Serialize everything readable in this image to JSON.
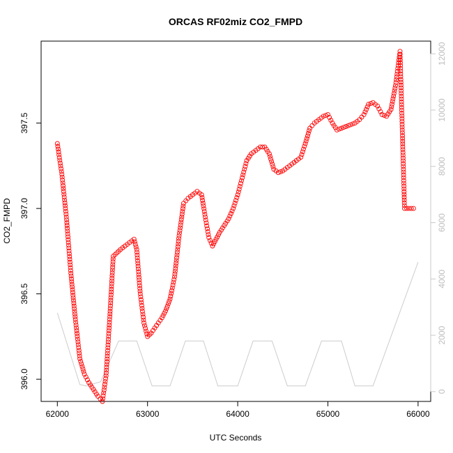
{
  "chart_data": {
    "type": "scatter",
    "title": "ORCAS RF02miz CO2_FMPD",
    "xlabel": "UTC Seconds",
    "ylabel": "CO2_FMPD",
    "xlim": [
      61820,
      66140
    ],
    "ylim": [
      395.87,
      397.98
    ],
    "y2lim": [
      -350,
      12450
    ],
    "x_ticks": [
      {
        "value": 62000,
        "label": "62000"
      },
      {
        "value": 63000,
        "label": "63000"
      },
      {
        "value": 64000,
        "label": "64000"
      },
      {
        "value": 65000,
        "label": "65000"
      },
      {
        "value": 66000,
        "label": "66000"
      }
    ],
    "y_ticks": [
      {
        "value": 396.0,
        "label": "396.0"
      },
      {
        "value": 396.5,
        "label": "396.5"
      },
      {
        "value": 397.0,
        "label": "397.0"
      },
      {
        "value": 397.5,
        "label": "397.5"
      }
    ],
    "y2_ticks": [
      {
        "value": 0,
        "label": "0"
      },
      {
        "value": 2000,
        "label": "2000"
      },
      {
        "value": 4000,
        "label": "4000"
      },
      {
        "value": 6000,
        "label": "6000"
      },
      {
        "value": 8000,
        "label": "8000"
      },
      {
        "value": 10000,
        "label": "10000"
      },
      {
        "value": 12000,
        "label": "12000"
      }
    ],
    "grid": false,
    "series": [
      {
        "role": "primary",
        "style": "circles",
        "color": "#ff0000",
        "axis": "left",
        "x": [
          62000,
          62050,
          62100,
          62150,
          62200,
          62250,
          62300,
          62350,
          62400,
          62450,
          62500,
          62540,
          62580,
          62620,
          62660,
          62700,
          62750,
          62800,
          62850,
          62880,
          62920,
          62960,
          63000,
          63040,
          63080,
          63120,
          63160,
          63200,
          63250,
          63300,
          63350,
          63400,
          63450,
          63500,
          63550,
          63600,
          63640,
          63680,
          63720,
          63760,
          63800,
          63850,
          63900,
          63950,
          64000,
          64050,
          64100,
          64150,
          64200,
          64250,
          64300,
          64350,
          64400,
          64450,
          64500,
          64550,
          64600,
          64650,
          64700,
          64750,
          64800,
          64850,
          64900,
          64950,
          65000,
          65050,
          65100,
          65150,
          65200,
          65250,
          65300,
          65350,
          65400,
          65450,
          65500,
          65550,
          65600,
          65650,
          65700,
          65750,
          65800,
          65850,
          65900,
          65950,
          66000
        ],
        "y": [
          397.38,
          397.2,
          396.95,
          396.62,
          396.35,
          396.12,
          396.03,
          395.98,
          395.94,
          395.9,
          395.87,
          396.02,
          396.35,
          396.72,
          396.74,
          396.76,
          396.78,
          396.8,
          396.82,
          396.76,
          396.5,
          396.33,
          396.25,
          396.27,
          396.3,
          396.33,
          396.36,
          396.4,
          396.47,
          396.6,
          396.84,
          397.03,
          397.06,
          397.08,
          397.1,
          397.08,
          396.95,
          396.83,
          396.78,
          396.82,
          396.86,
          396.9,
          396.94,
          397.0,
          397.08,
          397.18,
          397.28,
          397.32,
          397.34,
          397.36,
          397.36,
          397.32,
          397.23,
          397.21,
          397.22,
          397.24,
          397.26,
          397.28,
          397.3,
          397.38,
          397.47,
          397.5,
          397.52,
          397.54,
          397.55,
          397.5,
          397.46,
          397.47,
          397.48,
          397.49,
          397.5,
          397.52,
          397.55,
          397.61,
          397.62,
          397.6,
          397.55,
          397.54,
          397.58,
          397.72,
          397.92,
          397.0,
          397.0,
          397.0,
          397.0
        ]
      },
      {
        "role": "secondary",
        "style": "line",
        "color": "#cccccc",
        "axis": "right",
        "x": [
          62000,
          62250,
          62320,
          62480,
          62680,
          62880,
          63050,
          63250,
          63420,
          63620,
          63780,
          64000,
          64170,
          64380,
          64550,
          64750,
          64930,
          65150,
          65300,
          65500,
          66000
        ],
        "y": [
          2800,
          250,
          200,
          350,
          1800,
          1800,
          200,
          200,
          1800,
          1800,
          200,
          200,
          1800,
          1800,
          200,
          200,
          1800,
          1800,
          200,
          200,
          4600
        ]
      }
    ]
  }
}
